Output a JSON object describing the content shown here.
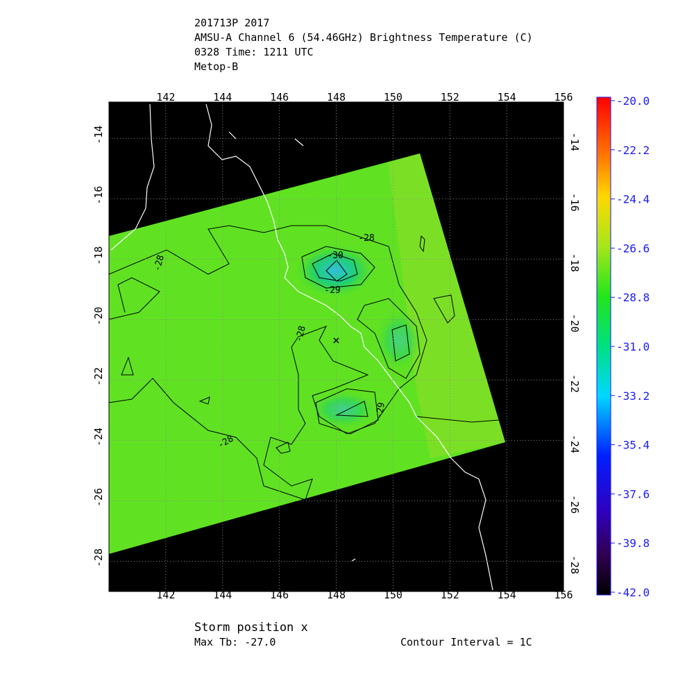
{
  "header": {
    "lines": [
      "201713P 2017",
      "AMSU-A Channel 6 (54.46GHz) Brightness Temperature (C)",
      "0328 Time: 1211 UTC",
      "Metop-B"
    ]
  },
  "map": {
    "xlim": [
      140,
      156
    ],
    "ylim": [
      -12.8,
      -29.0
    ],
    "xticks": [
      142,
      144,
      146,
      148,
      150,
      152,
      154,
      156
    ],
    "yticks": [
      -14,
      -16,
      -18,
      -20,
      -22,
      -24,
      -26,
      -28
    ],
    "grid": true,
    "contour_labels": [
      "-28",
      "-30",
      "-28",
      "-28",
      "-28",
      "-29",
      "-29"
    ]
  },
  "colorbar": {
    "lim": [
      -20,
      -42
    ],
    "ticks": [
      {
        "value": -20,
        "label": "-20.0"
      },
      {
        "value": -22.2,
        "label": "-22.2"
      },
      {
        "value": -24.4,
        "label": "-24.4"
      },
      {
        "value": -26.6,
        "label": "-26.6"
      },
      {
        "value": -28.8,
        "label": "-28.8"
      },
      {
        "value": -31,
        "label": "-31.0"
      },
      {
        "value": -33.2,
        "label": "-33.2"
      },
      {
        "value": -35.4,
        "label": "-35.4"
      },
      {
        "value": -37.6,
        "label": "-37.6"
      },
      {
        "value": -39.8,
        "label": "-39.8"
      },
      {
        "value": -42,
        "label": "-42.0"
      }
    ]
  },
  "footer": {
    "storm": "Storm position x",
    "max_tb": "Max Tb: -27.0",
    "contour_interval": "Contour Interval = 1C"
  }
}
